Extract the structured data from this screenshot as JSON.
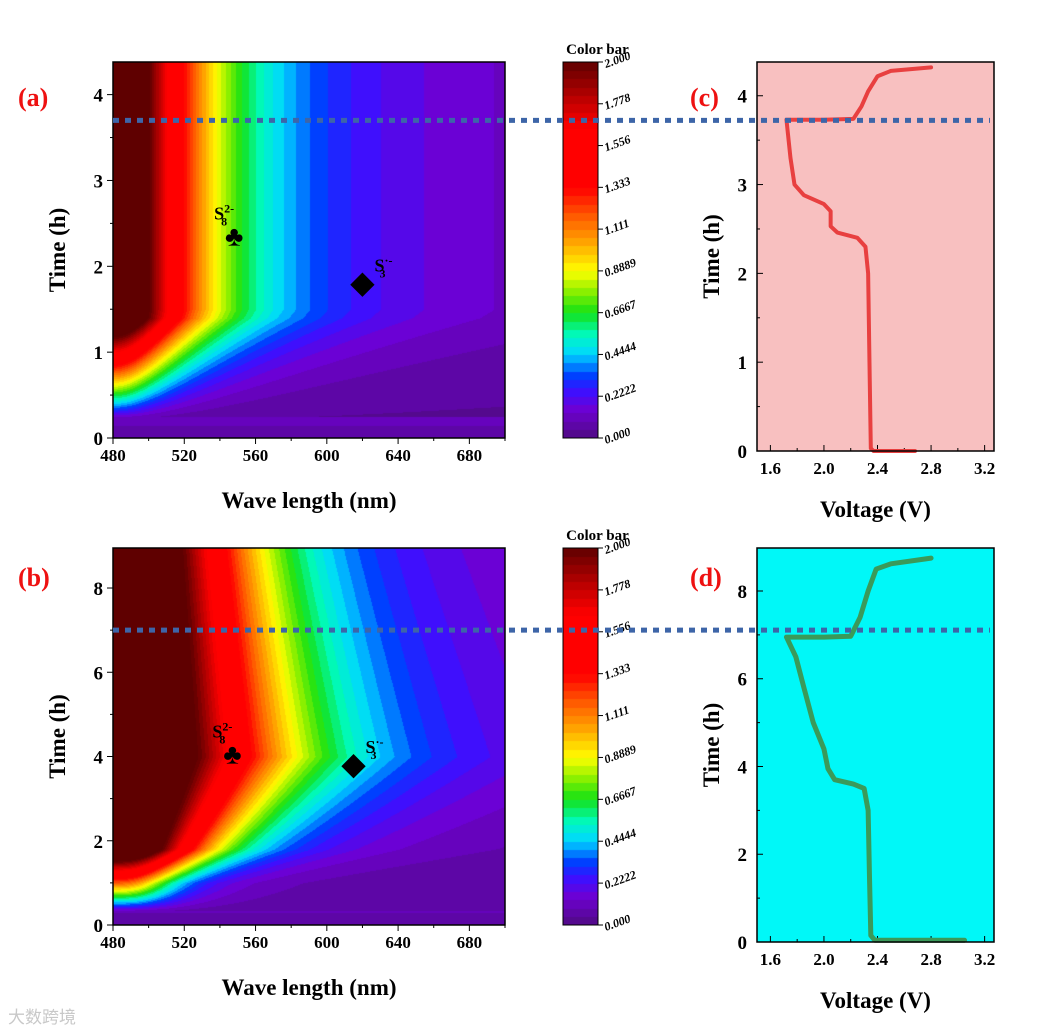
{
  "colors": {
    "panel_label": "#ee1111",
    "dotted_line": "#3d65a8",
    "curve_c": "#e84040",
    "bg_c": "#f8c0c0",
    "curve_d": "#3a9a5a",
    "bg_d": "#00f8f8"
  },
  "watermark": "大数跨境",
  "chart_data": [
    {
      "id": "a",
      "type": "heatmap",
      "panel_label": "(a)",
      "xlabel": "Wave length (nm)",
      "ylabel": "Time (h)",
      "xlim": [
        480,
        700
      ],
      "ylim": [
        0,
        4.38
      ],
      "xticks": [
        480,
        520,
        560,
        600,
        640,
        680
      ],
      "yticks": [
        0,
        1,
        2,
        3,
        4
      ],
      "colorbar": {
        "title": "Color bar",
        "range": [
          0,
          2
        ],
        "ticks": [
          "2.000",
          "1.778",
          "1.556",
          "1.333",
          "1.111",
          "0.8889",
          "0.6667",
          "0.4444",
          "0.2222",
          "0.000"
        ]
      },
      "markers": [
        {
          "symbol": "club",
          "label": "S8 2-",
          "label_main": "S",
          "sub": "8",
          "sup": "2-",
          "x": 548,
          "y": 2.35
        },
        {
          "symbol": "diamond",
          "label": "S3 ·-",
          "label_main": "S",
          "sub": "3",
          "sup": "·-",
          "x": 620,
          "y": 1.8
        }
      ],
      "reference_line_time": 3.7
    },
    {
      "id": "b",
      "type": "heatmap",
      "panel_label": "(b)",
      "xlabel": "Wave length (nm)",
      "ylabel": "Time (h)",
      "xlim": [
        480,
        700
      ],
      "ylim": [
        0,
        8.95
      ],
      "xticks": [
        480,
        520,
        560,
        600,
        640,
        680
      ],
      "yticks": [
        0,
        2,
        4,
        6,
        8
      ],
      "colorbar": {
        "title": "Color bar",
        "range": [
          0,
          2
        ],
        "ticks": [
          "2.000",
          "1.778",
          "1.556",
          "1.333",
          "1.111",
          "0.8889",
          "0.6667",
          "0.4444",
          "0.2222",
          "0.000"
        ]
      },
      "markers": [
        {
          "symbol": "club",
          "label": "S8 2-",
          "label_main": "S",
          "sub": "8",
          "sup": "2-",
          "x": 547,
          "y": 4.05
        },
        {
          "symbol": "diamond",
          "label": "S3 ·-",
          "label_main": "S",
          "sub": "3",
          "sup": "·-",
          "x": 615,
          "y": 3.8
        }
      ],
      "reference_line_time": 7.0
    },
    {
      "id": "c",
      "type": "line",
      "panel_label": "(c)",
      "xlabel": "Voltage (V)",
      "ylabel": "Time (h)",
      "xlim": [
        1.5,
        3.27
      ],
      "ylim": [
        0,
        4.38
      ],
      "xticks": [
        1.6,
        2.0,
        2.4,
        2.8,
        3.2
      ],
      "xtick_labels": [
        "1.6",
        "2.0",
        "2.4",
        "2.8",
        "3.2"
      ],
      "yticks": [
        0,
        1,
        2,
        3,
        4
      ],
      "series": [
        {
          "name": "voltage",
          "points": [
            [
              2.68,
              0.0
            ],
            [
              2.37,
              0.0
            ],
            [
              2.35,
              0.03
            ],
            [
              2.34,
              1.0
            ],
            [
              2.33,
              2.0
            ],
            [
              2.31,
              2.3
            ],
            [
              2.25,
              2.4
            ],
            [
              2.1,
              2.46
            ],
            [
              2.05,
              2.53
            ],
            [
              2.05,
              2.7
            ],
            [
              2.0,
              2.78
            ],
            [
              1.85,
              2.88
            ],
            [
              1.78,
              3.0
            ],
            [
              1.75,
              3.3
            ],
            [
              1.72,
              3.73
            ],
            [
              2.0,
              3.73
            ],
            [
              2.22,
              3.74
            ],
            [
              2.28,
              3.88
            ],
            [
              2.33,
              4.05
            ],
            [
              2.4,
              4.22
            ],
            [
              2.5,
              4.28
            ],
            [
              2.8,
              4.32
            ]
          ]
        }
      ],
      "reference_line_time": 3.7
    },
    {
      "id": "d",
      "type": "line",
      "panel_label": "(d)",
      "xlabel": "Voltage (V)",
      "ylabel": "Time (h)",
      "xlim": [
        1.5,
        3.27
      ],
      "ylim": [
        0,
        8.98
      ],
      "xticks": [
        1.6,
        2.0,
        2.4,
        2.8,
        3.2
      ],
      "xtick_labels": [
        "1.6",
        "2.0",
        "2.4",
        "2.8",
        "3.2"
      ],
      "yticks": [
        0,
        2,
        4,
        6,
        8
      ],
      "series": [
        {
          "name": "voltage",
          "points": [
            [
              3.05,
              0.04
            ],
            [
              2.38,
              0.04
            ],
            [
              2.35,
              0.15
            ],
            [
              2.34,
              1.5
            ],
            [
              2.33,
              3.0
            ],
            [
              2.3,
              3.5
            ],
            [
              2.22,
              3.6
            ],
            [
              2.08,
              3.7
            ],
            [
              2.03,
              3.95
            ],
            [
              2.0,
              4.4
            ],
            [
              1.92,
              5.0
            ],
            [
              1.85,
              5.8
            ],
            [
              1.79,
              6.5
            ],
            [
              1.72,
              6.95
            ],
            [
              2.0,
              6.95
            ],
            [
              2.2,
              6.97
            ],
            [
              2.27,
              7.4
            ],
            [
              2.33,
              8.0
            ],
            [
              2.39,
              8.5
            ],
            [
              2.5,
              8.62
            ],
            [
              2.8,
              8.75
            ]
          ]
        }
      ],
      "reference_line_time": 7.0
    }
  ]
}
